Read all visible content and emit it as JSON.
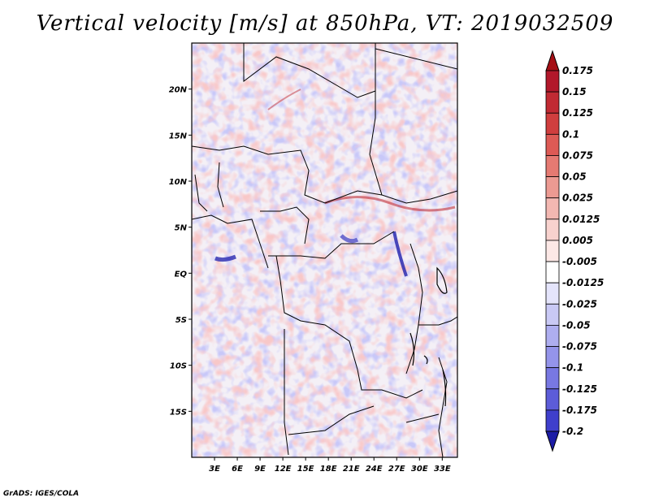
{
  "title": "Vertical velocity [m/s] at 850hPa, VT: 2019032509",
  "credit": "GrADS: IGES/COLA",
  "map": {
    "region": "Central Africa",
    "lon_range": [
      0,
      35
    ],
    "lat_range": [
      -20,
      25
    ],
    "lat_ticks": [
      {
        "value": 20,
        "label": "20N"
      },
      {
        "value": 15,
        "label": "15N"
      },
      {
        "value": 10,
        "label": "10N"
      },
      {
        "value": 5,
        "label": "5N"
      },
      {
        "value": 0,
        "label": "EQ"
      },
      {
        "value": -5,
        "label": "5S"
      },
      {
        "value": -10,
        "label": "10S"
      },
      {
        "value": -15,
        "label": "15S"
      }
    ],
    "lon_ticks": [
      {
        "value": 3,
        "label": "3E"
      },
      {
        "value": 6,
        "label": "6E"
      },
      {
        "value": 9,
        "label": "9E"
      },
      {
        "value": 12,
        "label": "12E"
      },
      {
        "value": 15,
        "label": "15E"
      },
      {
        "value": 18,
        "label": "18E"
      },
      {
        "value": 21,
        "label": "21E"
      },
      {
        "value": 24,
        "label": "24E"
      },
      {
        "value": 27,
        "label": "27E"
      },
      {
        "value": 30,
        "label": "30E"
      },
      {
        "value": 33,
        "label": "33E"
      }
    ]
  },
  "colorbar": {
    "levels": [
      {
        "label": "0.175",
        "color": "#b2182b"
      },
      {
        "label": "0.15",
        "color": "#c12a33"
      },
      {
        "label": "0.125",
        "color": "#d03e3e"
      },
      {
        "label": "0.1",
        "color": "#dd5a55"
      },
      {
        "label": "0.075",
        "color": "#e57a72"
      },
      {
        "label": "0.05",
        "color": "#ec9a92"
      },
      {
        "label": "0.025",
        "color": "#f3b8b2"
      },
      {
        "label": "0.0125",
        "color": "#f8d2ce"
      },
      {
        "label": "0.005",
        "color": "#fce8e6"
      },
      {
        "label": "-0.005",
        "color": "#ffffff"
      },
      {
        "label": "-0.0125",
        "color": "#e4e4fb"
      },
      {
        "label": "-0.025",
        "color": "#c9c9f5"
      },
      {
        "label": "-0.05",
        "color": "#aeaef0"
      },
      {
        "label": "-0.075",
        "color": "#9494ea"
      },
      {
        "label": "-0.1",
        "color": "#7878e2"
      },
      {
        "label": "-0.125",
        "color": "#5c5cd8"
      },
      {
        "label": "-0.175",
        "color": "#3f3fcc"
      },
      {
        "label": "-0.2",
        "color": "#2b2bb8"
      }
    ],
    "top_color": "#a50f15",
    "bottom_color": "#1c1ca6"
  }
}
